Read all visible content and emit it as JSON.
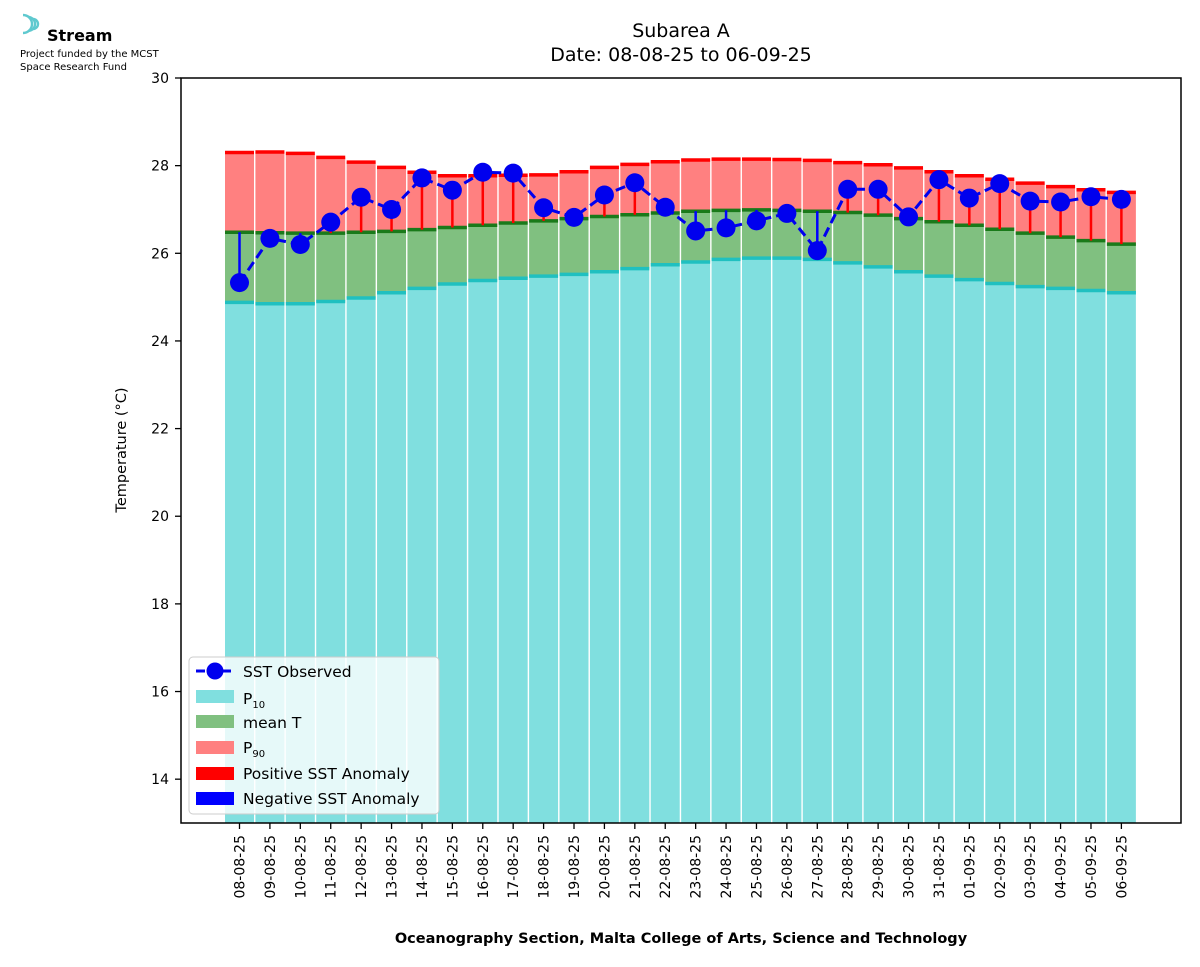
{
  "branding": {
    "name": "Stream",
    "line1": "Project funded by the MCST",
    "line2": "Space Research Fund",
    "icon": "stream-logo-icon"
  },
  "colors": {
    "p10": "#80dfdf",
    "p10_edge": "#20c0c0",
    "mean": "#80c080",
    "mean_edge": "#1a7a1a",
    "p90": "#ff8080",
    "p90_edge": "#ff0000",
    "positive_anomaly": "#ff0000",
    "negative_anomaly": "#0000ff",
    "sst": "#0000ee"
  },
  "chart_data": {
    "type": "bar",
    "title": "Subarea A",
    "subtitle": "Date: 08-08-25 to 06-09-25",
    "xlabel": "Oceanography Section, Malta College of Arts, Science and Technology",
    "ylabel": "Temperature (°C)",
    "ylim": [
      13,
      30
    ],
    "yticks": [
      14,
      16,
      18,
      20,
      22,
      24,
      26,
      28,
      30
    ],
    "grid": false,
    "legend_position": "lower-left",
    "categories": [
      "08-08-25",
      "09-08-25",
      "10-08-25",
      "11-08-25",
      "12-08-25",
      "13-08-25",
      "14-08-25",
      "15-08-25",
      "16-08-25",
      "17-08-25",
      "18-08-25",
      "19-08-25",
      "20-08-25",
      "21-08-25",
      "22-08-25",
      "23-08-25",
      "24-08-25",
      "25-08-25",
      "26-08-25",
      "27-08-25",
      "28-08-25",
      "29-08-25",
      "30-08-25",
      "31-08-25",
      "01-09-25",
      "02-09-25",
      "03-09-25",
      "04-09-25",
      "05-09-25",
      "06-09-25"
    ],
    "series": [
      {
        "name": "SST Observed",
        "type": "line",
        "values": [
          25.33,
          26.34,
          26.2,
          26.71,
          27.28,
          27.0,
          27.72,
          27.44,
          27.85,
          27.83,
          27.04,
          26.82,
          27.33,
          27.61,
          27.05,
          26.51,
          26.58,
          26.74,
          26.91,
          26.06,
          27.46,
          27.46,
          26.83,
          27.68,
          27.26,
          27.59,
          27.19,
          27.17,
          27.29,
          27.23
        ]
      },
      {
        "name": "P10",
        "name_main": "P",
        "name_sub": "10",
        "type": "bar",
        "values": [
          24.88,
          24.85,
          24.85,
          24.9,
          24.98,
          25.1,
          25.2,
          25.3,
          25.38,
          25.43,
          25.48,
          25.52,
          25.58,
          25.65,
          25.74,
          25.8,
          25.86,
          25.89,
          25.89,
          25.86,
          25.78,
          25.69,
          25.58,
          25.48,
          25.4,
          25.31,
          25.24,
          25.2,
          25.15,
          25.1
        ]
      },
      {
        "name": "mean T",
        "type": "bar",
        "values": [
          26.48,
          26.47,
          26.46,
          26.46,
          26.48,
          26.5,
          26.54,
          26.59,
          26.64,
          26.69,
          26.74,
          26.79,
          26.84,
          26.88,
          26.92,
          26.96,
          26.98,
          26.99,
          26.98,
          26.96,
          26.93,
          26.87,
          26.79,
          26.72,
          26.64,
          26.55,
          26.46,
          26.37,
          26.29,
          26.21
        ]
      },
      {
        "name": "P90",
        "name_main": "P",
        "name_sub": "90",
        "type": "bar",
        "values": [
          28.3,
          28.31,
          28.28,
          28.19,
          28.08,
          27.96,
          27.85,
          27.77,
          27.77,
          27.78,
          27.79,
          27.86,
          27.96,
          28.03,
          28.09,
          28.13,
          28.15,
          28.15,
          28.14,
          28.12,
          28.07,
          28.02,
          27.95,
          27.86,
          27.77,
          27.69,
          27.6,
          27.52,
          27.45,
          27.39
        ]
      },
      {
        "name": "Positive SST Anomaly",
        "type": "anomaly"
      },
      {
        "name": "Negative SST Anomaly",
        "type": "anomaly"
      }
    ]
  }
}
